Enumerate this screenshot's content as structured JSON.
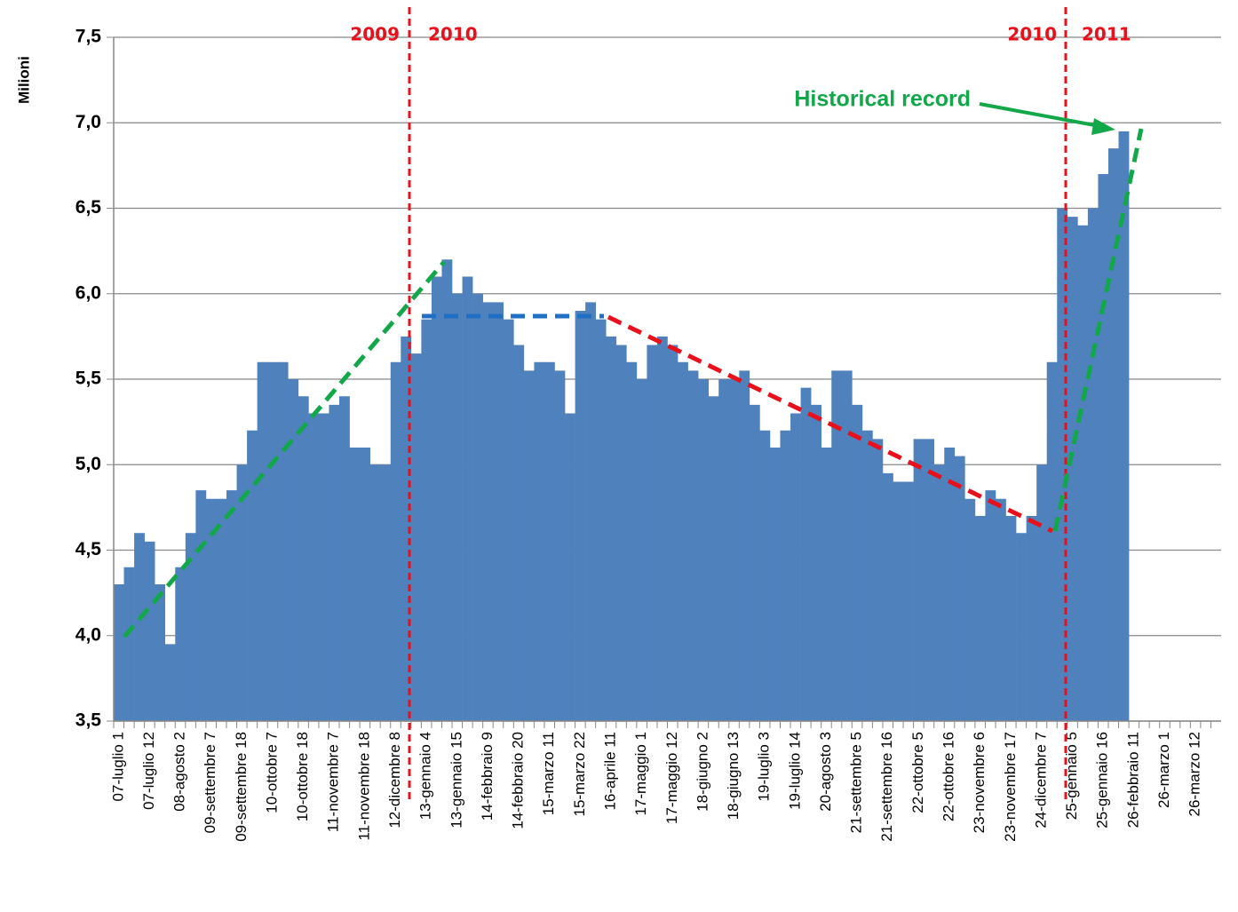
{
  "chart_data": {
    "type": "bar",
    "y_label": "Milioni",
    "color": "#4f81bd",
    "grid": true,
    "ylim": [
      3.5,
      7.5
    ],
    "yticks": [
      {
        "value": 3.5,
        "label": "3,5"
      },
      {
        "value": 4.0,
        "label": "4,0"
      },
      {
        "value": 4.5,
        "label": "4,5"
      },
      {
        "value": 5.0,
        "label": "5,0"
      },
      {
        "value": 5.5,
        "label": "5,5"
      },
      {
        "value": 6.0,
        "label": "6,0"
      },
      {
        "value": 6.5,
        "label": "6,5"
      },
      {
        "value": 7.0,
        "label": "7,0"
      },
      {
        "value": 7.5,
        "label": "7,5"
      }
    ],
    "annotations": [
      "2009",
      "2010",
      "2010",
      "2011",
      "Historical record"
    ],
    "categories": [
      "07-luglio 1",
      null,
      null,
      "07-luglio 12",
      null,
      null,
      "08-agosto 2",
      null,
      null,
      "09-settembre 7",
      null,
      null,
      "09-settembre 18",
      null,
      null,
      "10-ottobre 7",
      null,
      null,
      "10-ottobre 18",
      null,
      null,
      "11-novembre 7",
      null,
      null,
      "11-novembre 18",
      null,
      null,
      "12-dicembre 8",
      null,
      null,
      "13-gennaio 4",
      null,
      null,
      "13-gennaio 15",
      null,
      null,
      "14-febbraio 9",
      null,
      null,
      "14-febbraio 20",
      null,
      null,
      "15-marzo 11",
      null,
      null,
      "15-marzo 22",
      null,
      null,
      "16-aprile 11",
      null,
      null,
      "17-maggio 1",
      null,
      null,
      "17-maggio 12",
      null,
      null,
      "18-giugno 2",
      null,
      null,
      "18-giugno 13",
      null,
      null,
      "19-luglio 3",
      null,
      null,
      "19-luglio 14",
      null,
      null,
      "20-agosto 3",
      null,
      null,
      "21-settembre 5",
      null,
      null,
      "21-settembre 16",
      null,
      null,
      "22-ottobre 5",
      null,
      null,
      "22-ottobre 16",
      null,
      null,
      "23-novembre 6",
      null,
      null,
      "23-novembre 17",
      null,
      null,
      "24-dicembre 7",
      null,
      null,
      "25-gennaio 5",
      null,
      null,
      "25-gennaio 16",
      null,
      null,
      "26-febbraio 11",
      null,
      null,
      "26-marzo 1",
      null,
      null,
      "26-marzo 12",
      null,
      null
    ],
    "values": [
      4.3,
      4.4,
      4.6,
      4.55,
      4.3,
      3.95,
      4.4,
      4.6,
      4.85,
      4.8,
      4.8,
      4.85,
      5.0,
      5.2,
      5.6,
      5.6,
      5.6,
      5.5,
      5.4,
      5.3,
      5.3,
      5.35,
      5.4,
      5.1,
      5.1,
      5.0,
      5.0,
      5.6,
      5.75,
      5.65,
      5.85,
      6.1,
      6.2,
      6.0,
      6.1,
      6.0,
      5.95,
      5.95,
      5.85,
      5.7,
      5.55,
      5.6,
      5.6,
      5.55,
      5.3,
      5.9,
      5.95,
      5.85,
      5.75,
      5.7,
      5.6,
      5.5,
      5.7,
      5.75,
      5.7,
      5.6,
      5.55,
      5.5,
      5.4,
      5.5,
      5.5,
      5.55,
      5.35,
      5.2,
      5.1,
      5.2,
      5.3,
      5.45,
      5.35,
      5.1,
      5.55,
      5.55,
      5.35,
      5.2,
      5.15,
      4.95,
      4.9,
      4.9,
      5.15,
      5.15,
      5.0,
      5.1,
      5.05,
      4.8,
      4.7,
      4.85,
      4.8,
      4.7,
      4.6,
      4.7,
      5.0,
      5.6,
      6.5,
      6.45,
      6.4,
      6.5,
      6.7,
      6.85,
      6.95,
      null,
      null,
      null,
      null,
      null,
      null,
      null,
      null,
      null
    ]
  }
}
